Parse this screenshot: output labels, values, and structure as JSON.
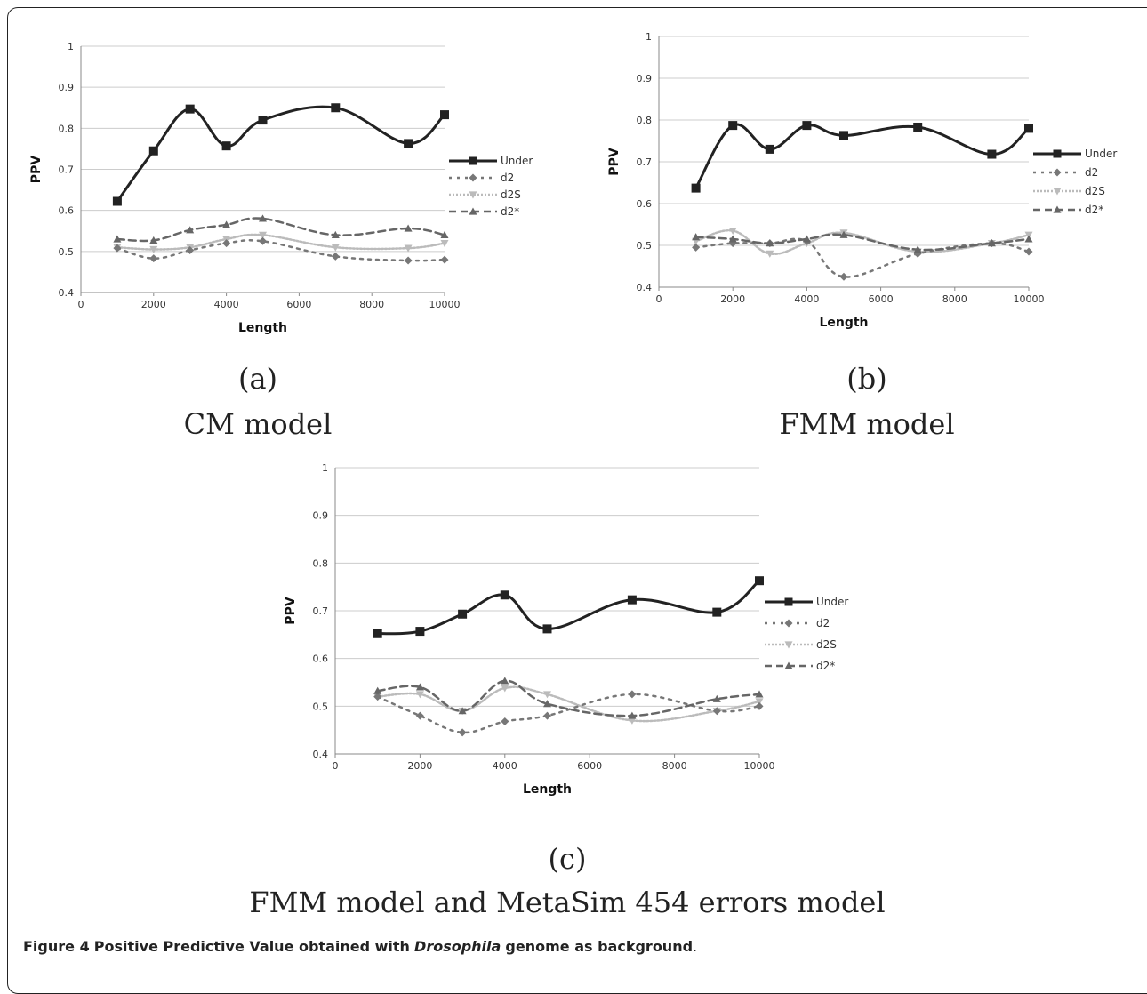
{
  "chart_data": [
    {
      "type": "line",
      "panel": "(a)",
      "caption": "CM model",
      "xlabel": "Length",
      "ylabel": "PPV",
      "xlim": [
        0,
        10000
      ],
      "ylim": [
        0.4,
        1
      ],
      "xticks": [
        0,
        2000,
        4000,
        6000,
        8000,
        10000
      ],
      "yticks": [
        0.4,
        0.5,
        0.6,
        0.7,
        0.8,
        0.9,
        1
      ],
      "ytick_labels": [
        "0.4",
        "0.5",
        "0.6",
        "0.7",
        "0.8",
        "0.9",
        "1"
      ],
      "legend_position": "right",
      "grid": true,
      "x": [
        1000,
        2000,
        3000,
        4000,
        5000,
        7000,
        9000,
        10000
      ],
      "series": [
        {
          "name": "Under",
          "values": [
            0.622,
            0.745,
            0.847,
            0.757,
            0.82,
            0.85,
            0.763,
            0.833
          ]
        },
        {
          "name": "d2",
          "values": [
            0.508,
            0.483,
            0.503,
            0.52,
            0.525,
            0.488,
            0.478,
            0.48
          ]
        },
        {
          "name": "d2S",
          "values": [
            0.51,
            0.505,
            0.51,
            0.53,
            0.54,
            0.51,
            0.508,
            0.52
          ]
        },
        {
          "name": "d2*",
          "values": [
            0.53,
            0.527,
            0.552,
            0.565,
            0.58,
            0.54,
            0.556,
            0.54
          ]
        }
      ]
    },
    {
      "type": "line",
      "panel": "(b)",
      "caption": "FMM model",
      "xlabel": "Length",
      "ylabel": "PPV",
      "xlim": [
        0,
        10000
      ],
      "ylim": [
        0.4,
        1
      ],
      "xticks": [
        0,
        2000,
        4000,
        6000,
        8000,
        10000
      ],
      "yticks": [
        0.4,
        0.5,
        0.6,
        0.7,
        0.8,
        0.9,
        1
      ],
      "ytick_labels": [
        "0.4",
        "0.5",
        "0.6",
        "0.7",
        "0.8",
        "0.9",
        "1"
      ],
      "legend_position": "right",
      "grid": true,
      "x": [
        1000,
        2000,
        3000,
        4000,
        5000,
        7000,
        9000,
        10000
      ],
      "series": [
        {
          "name": "Under",
          "values": [
            0.637,
            0.787,
            0.73,
            0.787,
            0.763,
            0.783,
            0.718,
            0.78
          ]
        },
        {
          "name": "d2",
          "values": [
            0.495,
            0.505,
            0.505,
            0.51,
            0.425,
            0.48,
            0.505,
            0.485
          ]
        },
        {
          "name": "d2S",
          "values": [
            0.51,
            0.535,
            0.48,
            0.505,
            0.53,
            0.485,
            0.505,
            0.525
          ]
        },
        {
          "name": "d2*",
          "values": [
            0.52,
            0.515,
            0.505,
            0.515,
            0.525,
            0.49,
            0.505,
            0.515
          ]
        }
      ]
    },
    {
      "type": "line",
      "panel": "(c)",
      "caption": "FMM model and MetaSim 454 errors model",
      "xlabel": "Length",
      "ylabel": "PPV",
      "xlim": [
        0,
        10000
      ],
      "ylim": [
        0.4,
        1
      ],
      "xticks": [
        0,
        2000,
        4000,
        6000,
        8000,
        10000
      ],
      "yticks": [
        0.4,
        0.5,
        0.6,
        0.7,
        0.8,
        0.9,
        1
      ],
      "ytick_labels": [
        "0.4",
        "0.5",
        "0.6",
        "0.7",
        "0.8",
        "0.9",
        "1"
      ],
      "legend_position": "right",
      "grid": true,
      "x": [
        1000,
        2000,
        3000,
        4000,
        5000,
        7000,
        9000,
        10000
      ],
      "series": [
        {
          "name": "Under",
          "values": [
            0.652,
            0.657,
            0.693,
            0.733,
            0.662,
            0.723,
            0.697,
            0.763
          ]
        },
        {
          "name": "d2",
          "values": [
            0.52,
            0.48,
            0.445,
            0.468,
            0.48,
            0.525,
            0.49,
            0.5
          ]
        },
        {
          "name": "d2S",
          "values": [
            0.52,
            0.525,
            0.49,
            0.538,
            0.525,
            0.47,
            0.49,
            0.51
          ]
        },
        {
          "name": "d2*",
          "values": [
            0.532,
            0.54,
            0.49,
            0.553,
            0.505,
            0.48,
            0.515,
            0.525
          ]
        }
      ]
    }
  ],
  "figure_caption": {
    "label": "Figure 4",
    "text_before": "Positive Predictive Value obtained with",
    "italic": "Drosophila",
    "text_after": "genome as background"
  },
  "colors": {
    "Under": "#222222",
    "d2": "#777777",
    "d2S": "#bbbbbb",
    "d2*": "#666666",
    "grid": "#cccccc",
    "axis": "#888888"
  }
}
